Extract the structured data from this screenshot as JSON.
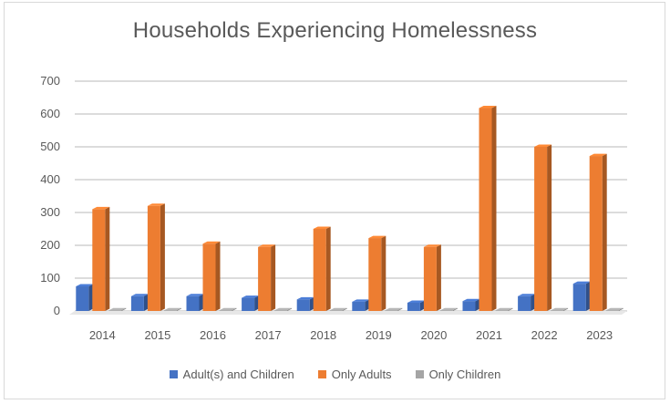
{
  "chart_data": {
    "type": "bar",
    "title": "Households Experiencing Homelessness",
    "categories": [
      "2014",
      "2015",
      "2016",
      "2017",
      "2018",
      "2019",
      "2020",
      "2021",
      "2022",
      "2023"
    ],
    "series": [
      {
        "name": "Adult(s) and Children",
        "color": "#4472c4",
        "values": [
          75,
          45,
          45,
          40,
          35,
          28,
          25,
          30,
          45,
          83
        ]
      },
      {
        "name": "Only Adults",
        "color": "#ed7d31",
        "values": [
          310,
          320,
          205,
          195,
          250,
          222,
          195,
          618,
          500,
          472
        ]
      },
      {
        "name": "Only Children",
        "color": "#a5a5a5",
        "values": [
          2,
          2,
          2,
          2,
          2,
          2,
          2,
          2,
          2,
          2
        ]
      }
    ],
    "ylim": [
      0,
      700
    ],
    "yticks": [
      0,
      100,
      200,
      300,
      400,
      500,
      600,
      700
    ],
    "grid": true,
    "legend_position": "bottom"
  }
}
